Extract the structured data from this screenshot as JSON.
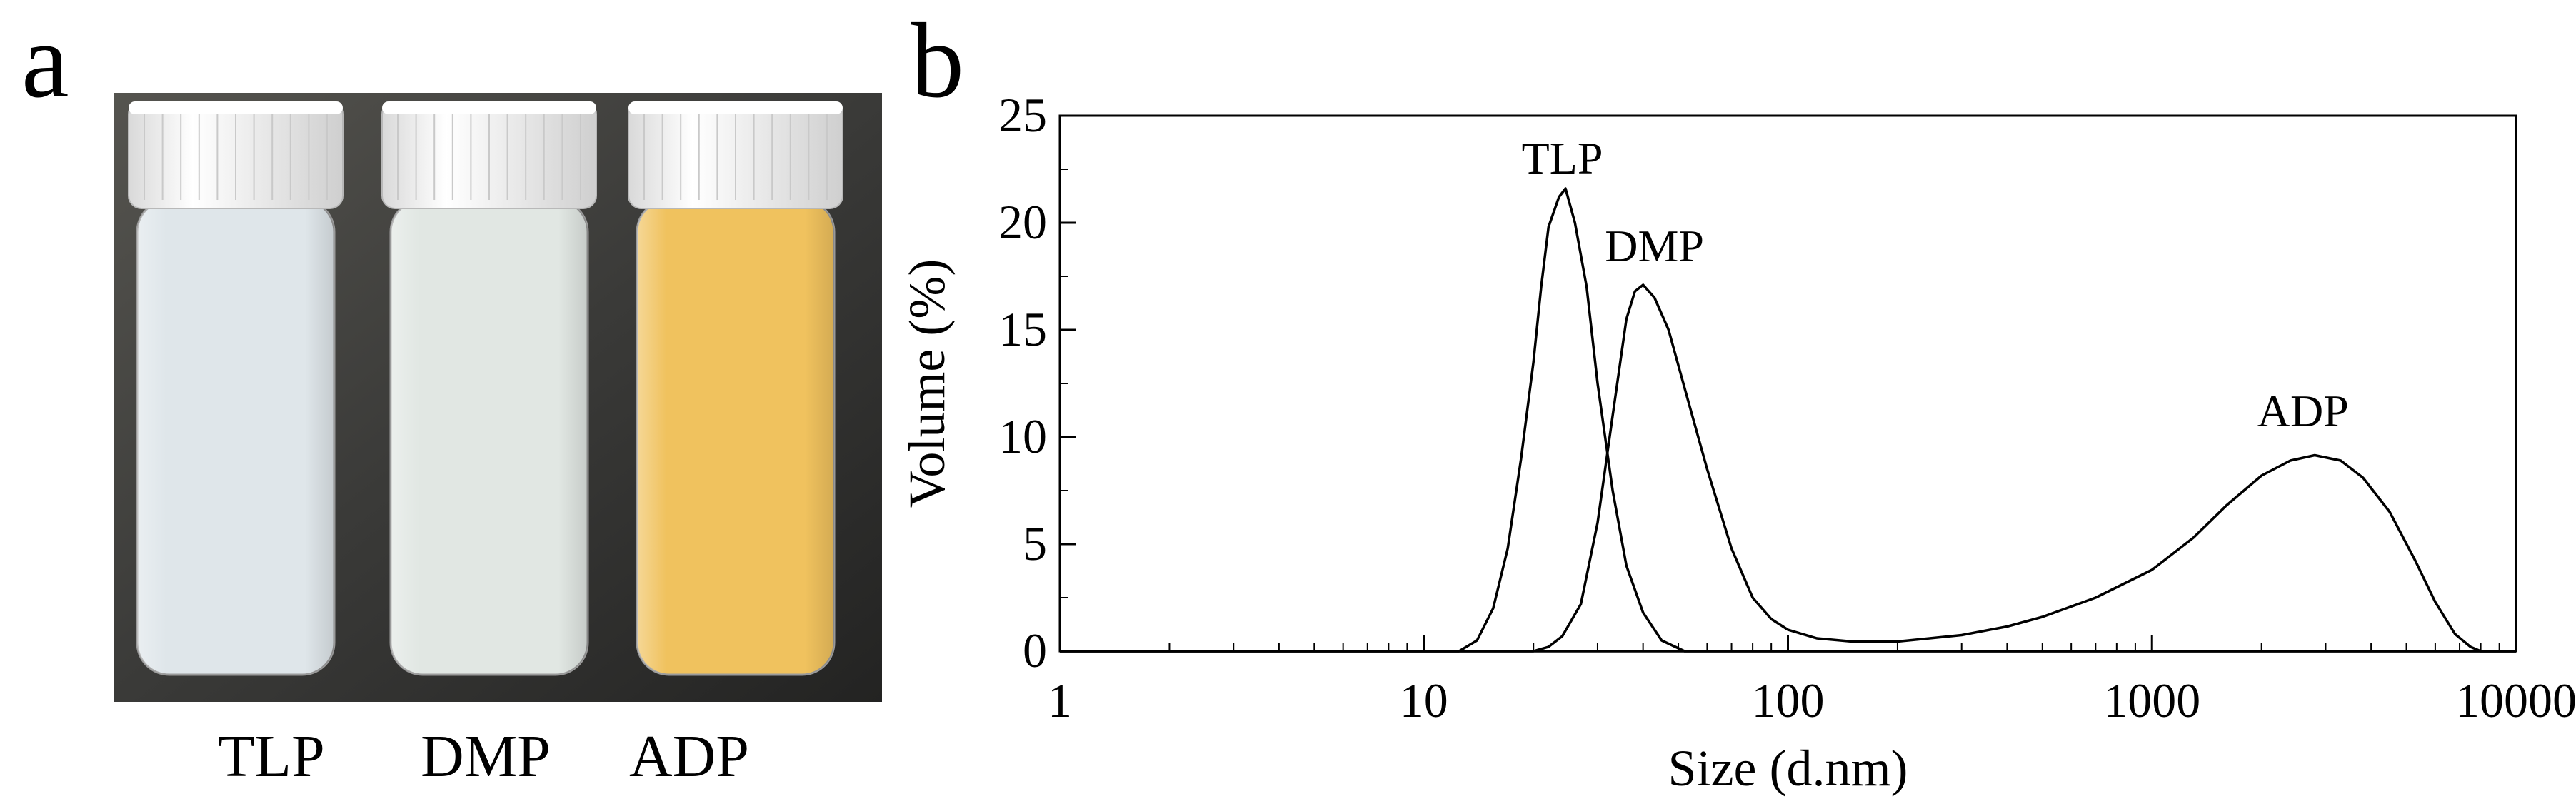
{
  "panel_a": {
    "letter": "a",
    "photo_labels": [
      "TLP",
      "DMP",
      "ADP"
    ],
    "vial_liquid_colors": [
      "#dfe6ea",
      "#e1e7e3",
      "#f0c25e"
    ],
    "cap_color": "#f2f2f2",
    "background_color": "#3a3a38"
  },
  "panel_b": {
    "letter": "b"
  },
  "chart_data": {
    "type": "line",
    "xscale": "log",
    "xlabel": "Size (d.nm)",
    "ylabel": "Volume (%)",
    "xlim": [
      1,
      10000
    ],
    "ylim": [
      0,
      25
    ],
    "xticks": [
      1,
      10,
      100,
      1000,
      10000
    ],
    "xtick_labels": [
      "1",
      "10",
      "100",
      "1000",
      "10000"
    ],
    "yticks": [
      0,
      5,
      10,
      15,
      20,
      25
    ],
    "ytick_labels": [
      "0",
      "5",
      "10",
      "15",
      "20",
      "25"
    ],
    "grid": false,
    "legend": "none",
    "series": [
      {
        "name": "TLP",
        "label_at": [
          24,
          22.3
        ],
        "points": [
          [
            1,
            0
          ],
          [
            12.5,
            0
          ],
          [
            14,
            0.5
          ],
          [
            15.5,
            2
          ],
          [
            17,
            4.8
          ],
          [
            18.5,
            9
          ],
          [
            20,
            13.5
          ],
          [
            21,
            17
          ],
          [
            22,
            19.8
          ],
          [
            23.5,
            21.2
          ],
          [
            24.5,
            21.6
          ],
          [
            26,
            20
          ],
          [
            28,
            17
          ],
          [
            30,
            12.5
          ],
          [
            33,
            7.5
          ],
          [
            36,
            4
          ],
          [
            40,
            1.8
          ],
          [
            45,
            0.5
          ],
          [
            52,
            0
          ],
          [
            100,
            0
          ],
          [
            10000,
            0
          ]
        ]
      },
      {
        "name": "DMP",
        "label_at": [
          43,
          18.2
        ],
        "points": [
          [
            1,
            0
          ],
          [
            20,
            0
          ],
          [
            22,
            0.2
          ],
          [
            24,
            0.7
          ],
          [
            27,
            2.2
          ],
          [
            30,
            6
          ],
          [
            33,
            11
          ],
          [
            36,
            15.5
          ],
          [
            38,
            16.8
          ],
          [
            40,
            17.1
          ],
          [
            43,
            16.5
          ],
          [
            47,
            15
          ],
          [
            52,
            12.3
          ],
          [
            60,
            8.5
          ],
          [
            70,
            4.8
          ],
          [
            80,
            2.5
          ],
          [
            90,
            1.5
          ],
          [
            100,
            1
          ],
          [
            120,
            0.6
          ],
          [
            150,
            0.45
          ],
          [
            200,
            0.45
          ],
          [
            300,
            0.75
          ],
          [
            400,
            1.15
          ],
          [
            500,
            1.6
          ],
          [
            700,
            2.5
          ],
          [
            1000,
            3.8
          ],
          [
            1300,
            5.3
          ],
          [
            1600,
            6.8
          ],
          [
            2000,
            8.2
          ],
          [
            2400,
            8.9
          ],
          [
            2800,
            9.15
          ],
          [
            3300,
            8.9
          ],
          [
            3800,
            8.1
          ],
          [
            4500,
            6.5
          ],
          [
            5300,
            4.2
          ],
          [
            6000,
            2.3
          ],
          [
            6800,
            0.8
          ],
          [
            7500,
            0.2
          ],
          [
            8000,
            0
          ],
          [
            10000,
            0
          ]
        ]
      },
      {
        "name": "ADP",
        "label_at": [
          2600,
          10.5
        ],
        "points": [
          [
            1,
            0
          ],
          [
            10000,
            0
          ]
        ]
      }
    ]
  }
}
